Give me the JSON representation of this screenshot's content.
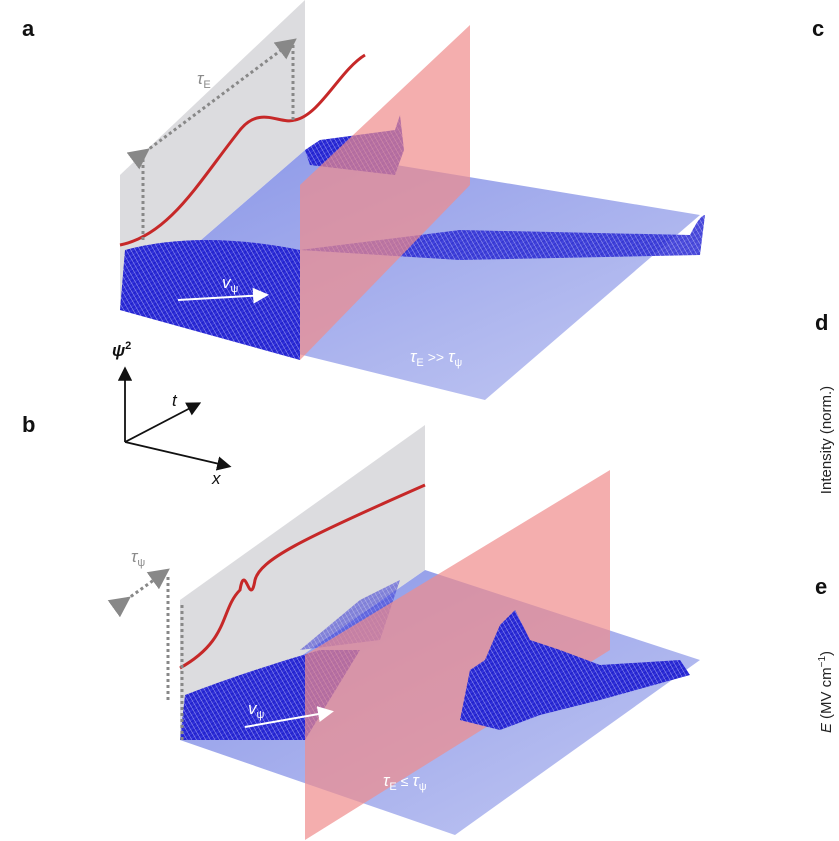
{
  "panels": [
    {
      "label": "a",
      "tau": {
        "symbol": "τ",
        "subscript": "E"
      },
      "velocity": {
        "symbol": "v",
        "subscript": "ψ"
      },
      "condition": {
        "left": "τ",
        "left_subscript": "E",
        "relation": ">>",
        "right": "τ",
        "right_subscript": "ψ"
      }
    },
    {
      "label": "b",
      "tau": {
        "symbol": "τ",
        "subscript": "ψ"
      },
      "velocity": {
        "symbol": "v",
        "subscript": "ψ"
      },
      "condition": {
        "left": "τ",
        "left_subscript": "E",
        "relation": "≤",
        "right": "τ",
        "right_subscript": "ψ"
      }
    }
  ],
  "axes": {
    "vertical": "ψ",
    "vertical_power": "2",
    "depth": "t",
    "horizontal": "x"
  },
  "side_panels": [
    {
      "label": "c"
    },
    {
      "label": "d",
      "axis_label": "Intensity (norm.)"
    },
    {
      "label": "e",
      "axis_label_symbol": "E",
      "axis_label_unit": "(MV cm",
      "axis_label_power": "−1",
      "axis_label_close": ")"
    }
  ]
}
